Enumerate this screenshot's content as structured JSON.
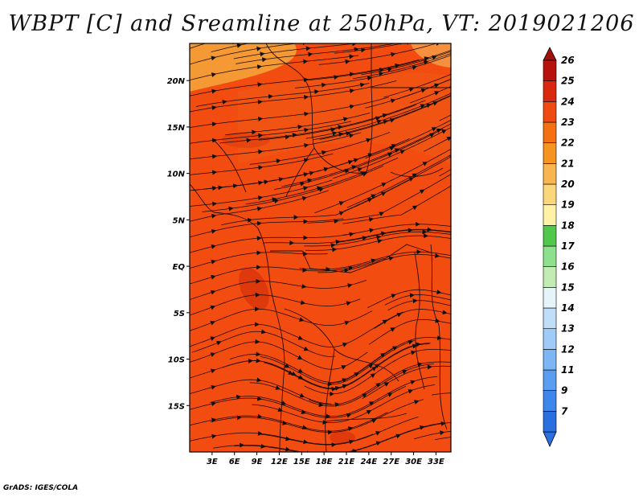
{
  "title": "WBPT [C] and Sreamline at 250hPa, VT: 2019021206",
  "credit": "GrADS: IGES/COLA",
  "map": {
    "lon_range": [
      0,
      35
    ],
    "lat_range": [
      -20,
      24
    ],
    "lat_ticks": [
      {
        "value": 20,
        "label": "20N"
      },
      {
        "value": 15,
        "label": "15N"
      },
      {
        "value": 10,
        "label": "10N"
      },
      {
        "value": 5,
        "label": "5N"
      },
      {
        "value": 0,
        "label": "EQ"
      },
      {
        "value": -5,
        "label": "5S"
      },
      {
        "value": -10,
        "label": "10S"
      },
      {
        "value": -15,
        "label": "15S"
      }
    ],
    "lon_ticks": [
      {
        "value": 3,
        "label": "3E"
      },
      {
        "value": 6,
        "label": "6E"
      },
      {
        "value": 9,
        "label": "9E"
      },
      {
        "value": 12,
        "label": "12E"
      },
      {
        "value": 15,
        "label": "15E"
      },
      {
        "value": 18,
        "label": "18E"
      },
      {
        "value": 21,
        "label": "21E"
      },
      {
        "value": 24,
        "label": "24E"
      },
      {
        "value": 27,
        "label": "27E"
      },
      {
        "value": 30,
        "label": "30E"
      },
      {
        "value": 33,
        "label": "33E"
      }
    ],
    "field_colors": {
      "background": "#f24c10",
      "warm_north": "#f5a73a",
      "dark_patch": "#d7320c"
    }
  },
  "colorbar": {
    "bands": [
      {
        "value": "7",
        "color": "#2a6fe0"
      },
      {
        "value": "9",
        "color": "#3c86ec"
      },
      {
        "value": "11",
        "color": "#5a9ef2"
      },
      {
        "value": "12",
        "color": "#7db6f5"
      },
      {
        "value": "13",
        "color": "#9ecbf7"
      },
      {
        "value": "14",
        "color": "#c0def8"
      },
      {
        "value": "15",
        "color": "#e4f4f8"
      },
      {
        "value": "16",
        "color": "#c2ecb4"
      },
      {
        "value": "17",
        "color": "#8ee08c"
      },
      {
        "value": "18",
        "color": "#52c84a"
      },
      {
        "value": "19",
        "color": "#fff2a6"
      },
      {
        "value": "20",
        "color": "#fbd77c"
      },
      {
        "value": "21",
        "color": "#f8b550"
      },
      {
        "value": "22",
        "color": "#f59520"
      },
      {
        "value": "23",
        "color": "#f47012"
      },
      {
        "value": "24",
        "color": "#ef4a12"
      },
      {
        "value": "25",
        "color": "#d9280e"
      },
      {
        "value": "26",
        "color": "#b8120c"
      }
    ],
    "low_arrow_color": "#2a6fe0",
    "high_arrow_color": "#a2100c"
  }
}
